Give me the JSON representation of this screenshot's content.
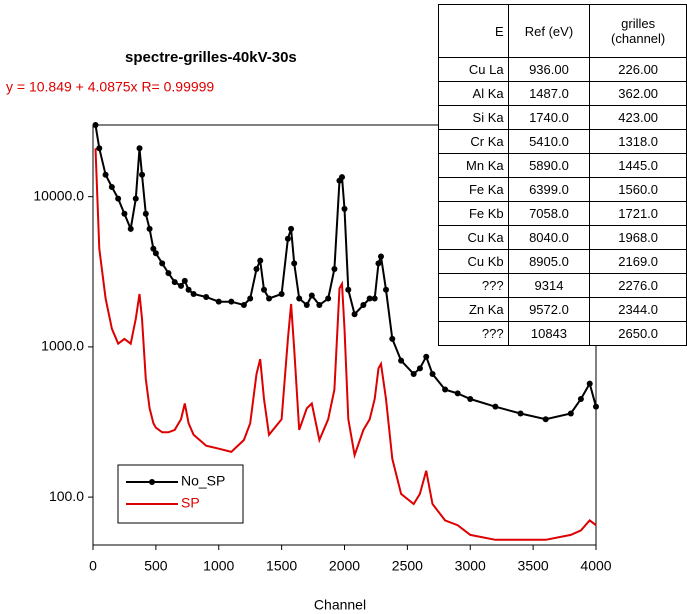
{
  "chart_data": {
    "type": "line",
    "title": "spectre-grilles-40kV-30s",
    "annotation": "y = 10.849 + 4.0875x   R= 0.99999",
    "xlabel": "Channel",
    "log_y": true,
    "grid": false,
    "legend": "lower left",
    "x": [
      20,
      50,
      100,
      150,
      200,
      250,
      300,
      340,
      370,
      390,
      420,
      450,
      480,
      500,
      550,
      600,
      650,
      700,
      730,
      760,
      800,
      900,
      1000,
      1100,
      1200,
      1250,
      1300,
      1330,
      1360,
      1400,
      1500,
      1550,
      1575,
      1600,
      1640,
      1700,
      1740,
      1800,
      1870,
      1920,
      1960,
      1980,
      2000,
      2030,
      2080,
      2150,
      2200,
      2240,
      2270,
      2290,
      2330,
      2380,
      2450,
      2550,
      2600,
      2650,
      2700,
      2800,
      2900,
      3000,
      3200,
      3400,
      3600,
      3800,
      3880,
      3950,
      4000
    ],
    "series": [
      {
        "name": "No_SP",
        "color": "#000000",
        "markers": true,
        "values": [
          30000,
          21000,
          14000,
          11600,
          9700,
          7700,
          6100,
          9700,
          21000,
          14000,
          7700,
          6100,
          4500,
          4200,
          3600,
          3100,
          2700,
          2550,
          2750,
          2400,
          2250,
          2150,
          2000,
          2000,
          1900,
          2100,
          3300,
          3750,
          2400,
          2100,
          2250,
          5250,
          6100,
          3600,
          2100,
          1900,
          2200,
          1900,
          2100,
          3300,
          12800,
          13500,
          8300,
          2400,
          1650,
          1900,
          2100,
          2100,
          3600,
          4000,
          2400,
          1130,
          810,
          660,
          720,
          860,
          660,
          520,
          490,
          450,
          400,
          360,
          330,
          360,
          450,
          570,
          400
        ]
      },
      {
        "name": "SP",
        "color": "#dd0000",
        "markers": false,
        "values": [
          21000,
          4500,
          2100,
          1320,
          1050,
          1130,
          1050,
          1540,
          2250,
          1540,
          610,
          390,
          310,
          290,
          270,
          270,
          280,
          330,
          420,
          310,
          260,
          220,
          210,
          200,
          240,
          310,
          660,
          830,
          450,
          260,
          330,
          1130,
          1930,
          970,
          280,
          390,
          420,
          240,
          330,
          520,
          2450,
          2630,
          1320,
          330,
          190,
          280,
          330,
          450,
          720,
          770,
          450,
          180,
          105,
          90,
          105,
          150,
          90,
          70,
          65,
          56,
          52,
          52,
          52,
          56,
          60,
          70,
          65
        ]
      }
    ],
    "xlim": [
      0,
      4000
    ],
    "xticks": [
      0,
      500,
      1000,
      1500,
      2000,
      2500,
      3000,
      3500,
      4000
    ],
    "ylim": [
      48,
      30000
    ],
    "yticks": [
      {
        "value": 100,
        "label": "100.0"
      },
      {
        "value": 1000,
        "label": "1000.0"
      },
      {
        "value": 10000,
        "label": "10000.0"
      }
    ]
  },
  "table": {
    "header": [
      "E",
      "Ref (eV)",
      "grilles (channel)"
    ],
    "rows": [
      [
        "Cu La",
        "936.00",
        "226.00"
      ],
      [
        "Al Ka",
        "1487.0",
        "362.00"
      ],
      [
        "Si Ka",
        "1740.0",
        "423.00"
      ],
      [
        "Cr Ka",
        "5410.0",
        "1318.0"
      ],
      [
        "Mn Ka",
        "5890.0",
        "1445.0"
      ],
      [
        "Fe Ka",
        "6399.0",
        "1560.0"
      ],
      [
        "Fe Kb",
        "7058.0",
        "1721.0"
      ],
      [
        "Cu Ka",
        "8040.0",
        "1968.0"
      ],
      [
        "Cu Kb",
        "8905.0",
        "2169.0"
      ],
      [
        "???",
        "9314",
        "2276.0"
      ],
      [
        "Zn Ka",
        "9572.0",
        "2344.0"
      ],
      [
        "???",
        "10843",
        "2650.0"
      ]
    ]
  }
}
